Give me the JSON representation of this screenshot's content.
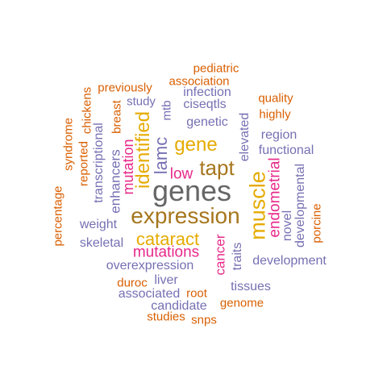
{
  "palette": {
    "orange": "#D95F02",
    "purple": "#7570B3",
    "magenta": "#E7298A",
    "gold": "#E6AB02",
    "olive": "#A6761D",
    "gray": "#666666",
    "background": "#FFFFFF"
  },
  "words": [
    {
      "text": "genes",
      "color": "gray",
      "orientation": "horizontal"
    },
    {
      "text": "expression",
      "color": "olive",
      "orientation": "horizontal"
    },
    {
      "text": "tapt",
      "color": "olive",
      "orientation": "horizontal"
    },
    {
      "text": "muscle",
      "color": "gold",
      "orientation": "vertical"
    },
    {
      "text": "identified",
      "color": "gold",
      "orientation": "vertical"
    },
    {
      "text": "gene",
      "color": "gold",
      "orientation": "horizontal"
    },
    {
      "text": "cataract",
      "color": "gold",
      "orientation": "horizontal"
    },
    {
      "text": "lamc",
      "color": "purple",
      "orientation": "vertical"
    },
    {
      "text": "mutations",
      "color": "magenta",
      "orientation": "horizontal"
    },
    {
      "text": "endometrial",
      "color": "magenta",
      "orientation": "vertical"
    },
    {
      "text": "mutation",
      "color": "magenta",
      "orientation": "vertical"
    },
    {
      "text": "low",
      "color": "magenta",
      "orientation": "horizontal"
    },
    {
      "text": "cancer",
      "color": "magenta",
      "orientation": "vertical"
    },
    {
      "text": "enhancers",
      "color": "purple",
      "orientation": "vertical"
    },
    {
      "text": "functional",
      "color": "purple",
      "orientation": "horizontal"
    },
    {
      "text": "region",
      "color": "purple",
      "orientation": "horizontal"
    },
    {
      "text": "genetic",
      "color": "purple",
      "orientation": "horizontal"
    },
    {
      "text": "infection",
      "color": "purple",
      "orientation": "horizontal"
    },
    {
      "text": "ciseqtls",
      "color": "purple",
      "orientation": "horizontal"
    },
    {
      "text": "elevated",
      "color": "purple",
      "orientation": "vertical"
    },
    {
      "text": "transcriptional",
      "color": "purple",
      "orientation": "vertical"
    },
    {
      "text": "weight",
      "color": "purple",
      "orientation": "horizontal"
    },
    {
      "text": "skeletal",
      "color": "purple",
      "orientation": "horizontal"
    },
    {
      "text": "overexpression",
      "color": "purple",
      "orientation": "horizontal"
    },
    {
      "text": "liver",
      "color": "purple",
      "orientation": "horizontal"
    },
    {
      "text": "associated",
      "color": "purple",
      "orientation": "horizontal"
    },
    {
      "text": "candidate",
      "color": "purple",
      "orientation": "horizontal"
    },
    {
      "text": "tissues",
      "color": "purple",
      "orientation": "horizontal"
    },
    {
      "text": "development",
      "color": "purple",
      "orientation": "horizontal"
    },
    {
      "text": "traits",
      "color": "purple",
      "orientation": "vertical"
    },
    {
      "text": "novel",
      "color": "purple",
      "orientation": "vertical"
    },
    {
      "text": "developmental",
      "color": "purple",
      "orientation": "vertical"
    },
    {
      "text": "study",
      "color": "purple",
      "orientation": "horizontal"
    },
    {
      "text": "mtb",
      "color": "purple",
      "orientation": "vertical"
    },
    {
      "text": "pediatric",
      "color": "orange",
      "orientation": "horizontal"
    },
    {
      "text": "association",
      "color": "orange",
      "orientation": "horizontal"
    },
    {
      "text": "previously",
      "color": "orange",
      "orientation": "horizontal"
    },
    {
      "text": "quality",
      "color": "orange",
      "orientation": "horizontal"
    },
    {
      "text": "highly",
      "color": "orange",
      "orientation": "horizontal"
    },
    {
      "text": "breast",
      "color": "orange",
      "orientation": "vertical"
    },
    {
      "text": "chickens",
      "color": "orange",
      "orientation": "vertical"
    },
    {
      "text": "reported",
      "color": "orange",
      "orientation": "vertical"
    },
    {
      "text": "syndrome",
      "color": "orange",
      "orientation": "vertical"
    },
    {
      "text": "percentage",
      "color": "orange",
      "orientation": "vertical"
    },
    {
      "text": "porcine",
      "color": "orange",
      "orientation": "vertical"
    },
    {
      "text": "duroc",
      "color": "orange",
      "orientation": "horizontal"
    },
    {
      "text": "root",
      "color": "orange",
      "orientation": "horizontal"
    },
    {
      "text": "genome",
      "color": "orange",
      "orientation": "horizontal"
    },
    {
      "text": "studies",
      "color": "orange",
      "orientation": "horizontal"
    },
    {
      "text": "snps",
      "color": "orange",
      "orientation": "horizontal"
    }
  ]
}
